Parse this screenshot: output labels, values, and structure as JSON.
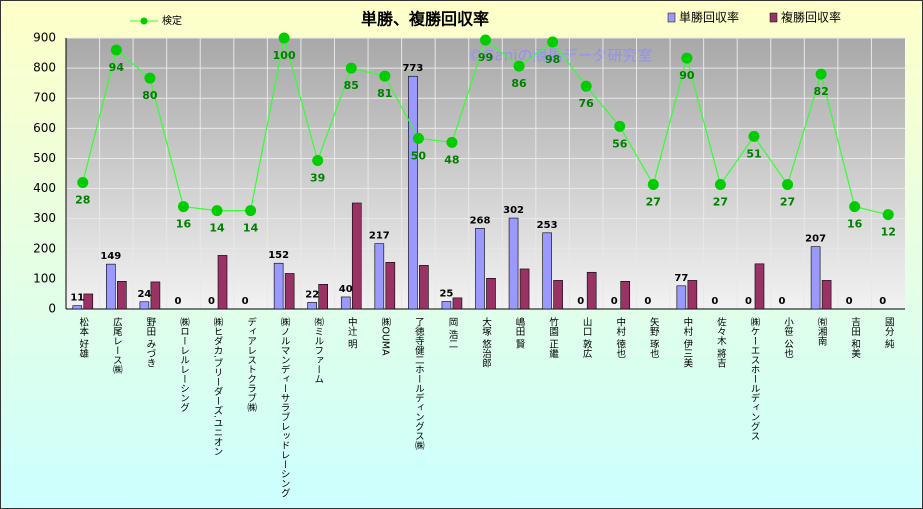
{
  "chart_data": {
    "type": "bar",
    "title": "単勝、複勝回収率",
    "watermark": "©Ganiの競馬データ研究室",
    "categories": [
      "松本 好雄",
      "広尾レース㈱",
      "野田 みづき",
      "㈱ローレルレーシング",
      "㈱ヒダカ.ブリーダーズ.ユニオン",
      "ディアレストクラブ㈱",
      "㈱ノルマンディーサラブレッドレーシング",
      "㈲ミルファーム",
      "中辻 明",
      "㈱OUMA",
      "了徳寺健二ホールディングス㈱",
      "岡 浩二",
      "大塚 悠治郎",
      "嶋田 賢",
      "竹園 正繼",
      "山口 敦広",
      "中村 徳也",
      "矢野 琢也",
      "中村 伊三美",
      "佐々木 將吉",
      "㈱ケーエスホールディングス",
      "小笹 公也",
      "㈲湘南",
      "吉田 和美",
      "國分 純"
    ],
    "series": [
      {
        "name": "単勝回収率",
        "type": "bar",
        "color": "#9999ff",
        "data_labels": true,
        "values": [
          11,
          149,
          24,
          0,
          0,
          0,
          152,
          22,
          40,
          217,
          773,
          25,
          268,
          302,
          253,
          0,
          0,
          0,
          77,
          0,
          0,
          0,
          207,
          0,
          0
        ]
      },
      {
        "name": "複勝回収率",
        "type": "bar",
        "color": "#993366",
        "data_labels": false,
        "values": [
          50,
          92,
          90,
          0,
          178,
          0,
          118,
          82,
          352,
          155,
          145,
          37,
          102,
          133,
          95,
          122,
          92,
          0,
          95,
          0,
          150,
          0,
          95,
          0,
          0
        ]
      },
      {
        "name": "検定",
        "type": "line",
        "axis": "y2",
        "color": "#33ff33",
        "marker_color": "#00cc00",
        "label_color": "#008000",
        "data_labels": true,
        "values": [
          28,
          94,
          80,
          16,
          14,
          14,
          100,
          39,
          85,
          81,
          50,
          48,
          99,
          86,
          98,
          76,
          56,
          27,
          90,
          27,
          51,
          27,
          82,
          16,
          12
        ]
      }
    ],
    "ylim": [
      0,
      900
    ],
    "yticks": [
      0,
      100,
      200,
      300,
      400,
      500,
      600,
      700,
      800,
      900
    ],
    "y2lim": [
      -35,
      100
    ],
    "grid": true
  }
}
